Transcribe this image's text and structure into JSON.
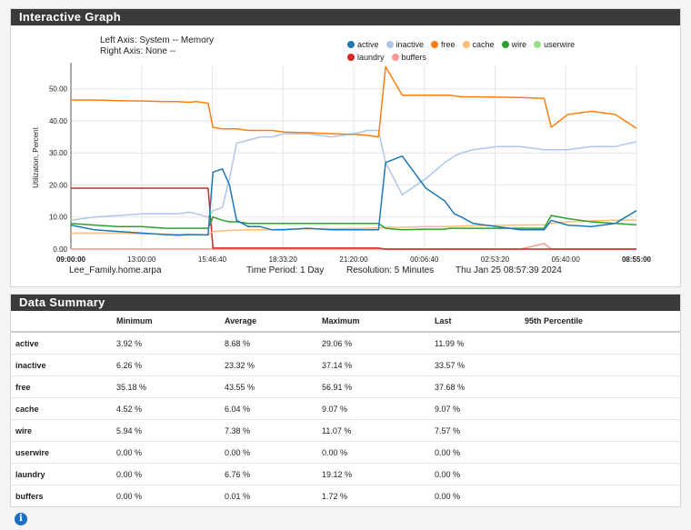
{
  "graph_panel": {
    "title": "Interactive Graph"
  },
  "summary_panel": {
    "title": "Data Summary"
  },
  "axis_info": {
    "left": "Left Axis: System -- Memory",
    "right": "Right Axis: None --"
  },
  "footer": {
    "host": "Lee_Family.home.arpa",
    "period": "Time Period: 1 Day",
    "resolution": "Resolution: 5 Minutes",
    "timestamp": "Thu Jan 25 08:57:39 2024"
  },
  "colors": {
    "active": "#1f77b4",
    "inactive": "#aec7e8",
    "free": "#ff7f0e",
    "cache": "#ffbb78",
    "wire": "#2ca02c",
    "userwire": "#98df8a",
    "laundry": "#d62728",
    "buffers": "#ff9896"
  },
  "chart_data": {
    "type": "line",
    "title": "",
    "ylabel": "Utilization, Percent",
    "xlabel": "",
    "ylim": [
      0,
      57
    ],
    "yticks": [
      "0.00",
      "10.00",
      "20.00",
      "30.00",
      "40.00",
      "50.00"
    ],
    "xticks": [
      "09:00:00",
      "13:00:00",
      "15:46:40",
      "18:33:20",
      "21:20:00",
      "00:06:40",
      "02:53:20",
      "05:40:00",
      "08:55:00"
    ],
    "x": [
      0,
      1,
      2,
      3,
      4,
      4.5,
      5,
      5.3,
      5.8,
      6,
      6.4,
      6.7,
      7,
      7.5,
      8,
      8.5,
      9,
      10,
      11,
      12,
      12.5,
      13,
      13.3,
      14,
      15,
      15.8,
      16,
      16.2,
      16.5,
      17,
      18,
      19,
      20,
      20.3,
      21,
      22,
      23,
      23.9
    ],
    "series": [
      {
        "name": "active",
        "values": [
          7.5,
          6,
          5.5,
          5,
          4.5,
          4.3,
          4.5,
          4.5,
          4.4,
          24,
          25,
          20,
          9,
          7,
          7,
          6,
          6,
          6.5,
          6,
          6,
          6,
          6,
          27,
          29,
          19,
          15,
          13,
          11,
          10,
          8,
          7,
          6,
          6,
          9,
          7.5,
          7,
          8,
          12
        ]
      },
      {
        "name": "inactive",
        "values": [
          9,
          10,
          10.5,
          11,
          11,
          11,
          11.5,
          11,
          10,
          12,
          13,
          22,
          33,
          34,
          35,
          35,
          36,
          36,
          35,
          36,
          37,
          37,
          27,
          17,
          22,
          27,
          28,
          29,
          30,
          31,
          32,
          32,
          31,
          31,
          31,
          32,
          32,
          33.5
        ]
      },
      {
        "name": "free",
        "values": [
          46.5,
          46.5,
          46.3,
          46.2,
          46,
          46,
          45.8,
          46,
          45.5,
          38,
          37.5,
          37.5,
          37.5,
          37,
          37,
          37,
          36.5,
          36.3,
          36,
          35.8,
          35.5,
          35,
          56.9,
          48,
          48,
          48,
          48,
          47.8,
          47.5,
          47.5,
          47.4,
          47.3,
          47,
          38,
          42,
          43,
          42,
          37.7
        ]
      },
      {
        "name": "cache",
        "values": [
          5,
          5,
          5,
          4.8,
          4.7,
          4.6,
          4.6,
          4.5,
          4.5,
          5.5,
          5.7,
          5.8,
          5.9,
          6,
          6,
          6.1,
          6.2,
          6.3,
          6.4,
          6.5,
          6.5,
          6.6,
          6.8,
          6.8,
          7,
          7,
          7.1,
          7.1,
          7.2,
          7.3,
          7.4,
          7.5,
          7.6,
          8,
          8.5,
          8.8,
          9,
          9.07
        ]
      },
      {
        "name": "wire",
        "values": [
          8,
          7.5,
          7,
          7,
          6.5,
          6.5,
          6.5,
          6.5,
          6.5,
          10,
          9,
          8.5,
          8.5,
          8,
          8,
          8,
          8,
          8,
          8,
          8,
          8,
          8,
          6.5,
          6,
          6.2,
          6.2,
          6.5,
          6.5,
          6.5,
          6.5,
          6.5,
          6.5,
          6.5,
          10.5,
          9.5,
          8.5,
          8,
          7.6
        ]
      },
      {
        "name": "userwire",
        "values": [
          0,
          0,
          0,
          0,
          0,
          0,
          0,
          0,
          0,
          0,
          0,
          0,
          0,
          0,
          0,
          0,
          0,
          0,
          0,
          0,
          0,
          0,
          0,
          0,
          0,
          0,
          0,
          0,
          0,
          0,
          0,
          0,
          0,
          0,
          0,
          0,
          0,
          0
        ]
      },
      {
        "name": "laundry",
        "values": [
          19,
          19,
          19,
          19,
          19,
          19,
          19,
          19,
          19,
          0.3,
          0.3,
          0.3,
          0.3,
          0.3,
          0.3,
          0.3,
          0.3,
          0.3,
          0.3,
          0.3,
          0.3,
          0.3,
          0,
          0,
          0,
          0,
          0,
          0,
          0,
          0,
          0,
          0,
          0,
          0,
          0,
          0,
          0,
          0
        ]
      },
      {
        "name": "buffers",
        "values": [
          0,
          0,
          0,
          0,
          0,
          0,
          0,
          0,
          0,
          0,
          0,
          0,
          0,
          0,
          0,
          0,
          0,
          0,
          0,
          0,
          0,
          0,
          0,
          0,
          0,
          0,
          0,
          0,
          0,
          0,
          0,
          0,
          1.72,
          0,
          0,
          0,
          0,
          0
        ]
      }
    ]
  },
  "summary": {
    "headers": [
      "",
      "Minimum",
      "Average",
      "Maximum",
      "Last",
      "95th Percentile"
    ],
    "rows": [
      {
        "name": "active",
        "min": "3.92 %",
        "avg": "8.68 %",
        "max": "29.06 %",
        "last": "11.99 %"
      },
      {
        "name": "inactive",
        "min": "6.26 %",
        "avg": "23.32 %",
        "max": "37.14 %",
        "last": "33.57 %"
      },
      {
        "name": "free",
        "min": "35.18 %",
        "avg": "43.55 %",
        "max": "56.91 %",
        "last": "37.68 %"
      },
      {
        "name": "cache",
        "min": "4.52 %",
        "avg": "6.04 %",
        "max": "9.07 %",
        "last": "9.07 %"
      },
      {
        "name": "wire",
        "min": "5.94 %",
        "avg": "7.38 %",
        "max": "11.07 %",
        "last": "7.57 %"
      },
      {
        "name": "userwire",
        "min": "0.00 %",
        "avg": "0.00 %",
        "max": "0.00 %",
        "last": "0.00 %"
      },
      {
        "name": "laundry",
        "min": "0.00 %",
        "avg": "6.76 %",
        "max": "19.12 %",
        "last": "0.00 %"
      },
      {
        "name": "buffers",
        "min": "0.00 %",
        "avg": "0.01 %",
        "max": "1.72 %",
        "last": "0.00 %"
      }
    ]
  }
}
